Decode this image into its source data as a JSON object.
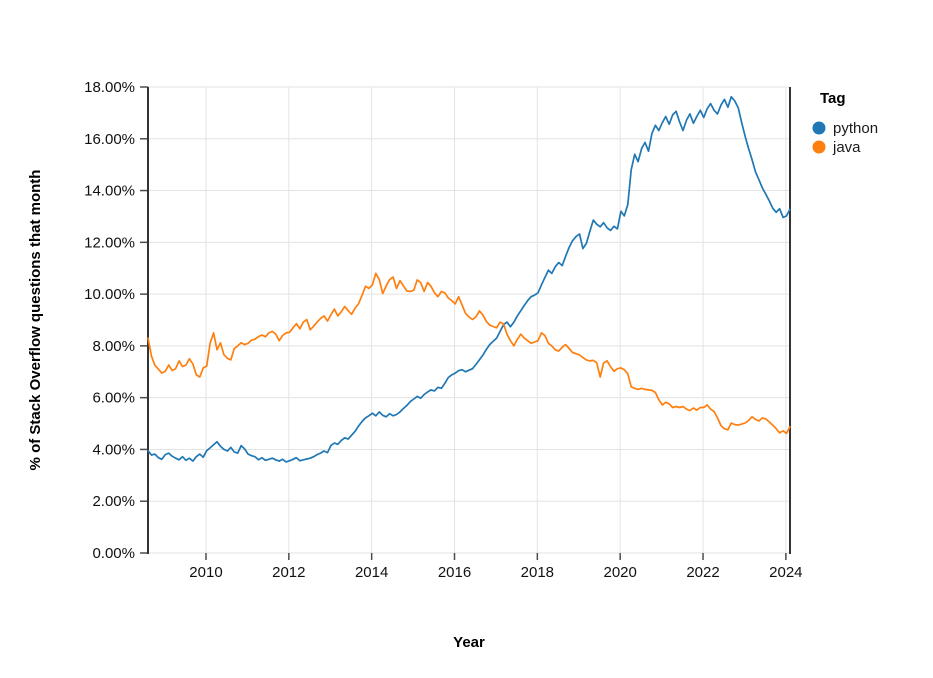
{
  "chart_data": {
    "type": "line",
    "title": "",
    "xlabel": "Year",
    "ylabel": "% of Stack Overflow questions that month",
    "grid": true,
    "x_domain": [
      2008.6,
      2024.1
    ],
    "y_domain": [
      0,
      18
    ],
    "x_ticks": {
      "values": [
        2010,
        2012,
        2014,
        2016,
        2018,
        2020,
        2022,
        2024
      ],
      "labels": [
        "2010",
        "2012",
        "2014",
        "2016",
        "2018",
        "2020",
        "2022",
        "2024"
      ]
    },
    "y_ticks": {
      "values": [
        0,
        2,
        4,
        6,
        8,
        10,
        12,
        14,
        16,
        18
      ],
      "labels": [
        "0.00%",
        "2.00%",
        "4.00%",
        "6.00%",
        "8.00%",
        "10.00%",
        "12.00%",
        "14.00%",
        "16.00%",
        "18.00%"
      ]
    },
    "legend": {
      "title": "Tag",
      "position": "right",
      "items": [
        {
          "label": "python",
          "color": "#1f77b4"
        },
        {
          "label": "java",
          "color": "#ff7f0e"
        }
      ]
    },
    "series": [
      {
        "name": "python",
        "color": "#1f77b4",
        "x_start": 2008.6,
        "x_step": 0.0833333,
        "values": [
          3.95,
          3.78,
          3.82,
          3.68,
          3.62,
          3.8,
          3.86,
          3.74,
          3.66,
          3.6,
          3.72,
          3.58,
          3.66,
          3.55,
          3.72,
          3.82,
          3.7,
          3.95,
          4.06,
          4.18,
          4.3,
          4.12,
          4.0,
          3.94,
          4.08,
          3.9,
          3.86,
          4.15,
          4.02,
          3.82,
          3.76,
          3.72,
          3.6,
          3.68,
          3.58,
          3.62,
          3.66,
          3.6,
          3.55,
          3.62,
          3.52,
          3.56,
          3.62,
          3.68,
          3.56,
          3.6,
          3.63,
          3.66,
          3.72,
          3.8,
          3.86,
          3.94,
          3.88,
          4.15,
          4.25,
          4.2,
          4.35,
          4.45,
          4.4,
          4.55,
          4.7,
          4.9,
          5.08,
          5.22,
          5.3,
          5.4,
          5.3,
          5.45,
          5.32,
          5.26,
          5.38,
          5.3,
          5.35,
          5.45,
          5.58,
          5.7,
          5.85,
          5.95,
          6.05,
          5.98,
          6.12,
          6.22,
          6.3,
          6.26,
          6.4,
          6.36,
          6.55,
          6.78,
          6.88,
          6.95,
          7.04,
          7.08,
          7.0,
          7.06,
          7.12,
          7.28,
          7.46,
          7.64,
          7.86,
          8.05,
          8.18,
          8.3,
          8.56,
          8.82,
          8.92,
          8.74,
          8.92,
          9.15,
          9.36,
          9.56,
          9.75,
          9.9,
          9.96,
          10.05,
          10.36,
          10.64,
          10.92,
          10.8,
          11.06,
          11.22,
          11.1,
          11.46,
          11.8,
          12.06,
          12.22,
          12.32,
          11.76,
          11.96,
          12.42,
          12.86,
          12.7,
          12.6,
          12.76,
          12.56,
          12.46,
          12.62,
          12.52,
          13.2,
          13.02,
          13.46,
          14.8,
          15.4,
          15.12,
          15.62,
          15.86,
          15.52,
          16.2,
          16.52,
          16.32,
          16.62,
          16.86,
          16.56,
          16.92,
          17.06,
          16.66,
          16.32,
          16.72,
          16.96,
          16.6,
          16.86,
          17.1,
          16.82,
          17.16,
          17.36,
          17.1,
          16.96,
          17.3,
          17.52,
          17.22,
          17.62,
          17.46,
          17.2,
          16.62,
          16.1,
          15.62,
          15.2,
          14.72,
          14.42,
          14.1,
          13.86,
          13.6,
          13.32,
          13.16,
          13.3,
          12.96,
          13.02,
          13.28
        ]
      },
      {
        "name": "java",
        "color": "#ff7f0e",
        "x_start": 2008.6,
        "x_step": 0.0833333,
        "values": [
          8.3,
          7.6,
          7.25,
          7.1,
          6.95,
          7.02,
          7.26,
          7.05,
          7.12,
          7.42,
          7.2,
          7.26,
          7.5,
          7.3,
          6.88,
          6.8,
          7.15,
          7.22,
          8.1,
          8.5,
          7.85,
          8.12,
          7.66,
          7.52,
          7.46,
          7.9,
          8.0,
          8.12,
          8.05,
          8.1,
          8.22,
          8.26,
          8.36,
          8.42,
          8.35,
          8.5,
          8.56,
          8.46,
          8.2,
          8.4,
          8.5,
          8.52,
          8.7,
          8.86,
          8.66,
          8.92,
          9.02,
          8.62,
          8.76,
          8.92,
          9.06,
          9.16,
          8.96,
          9.2,
          9.42,
          9.16,
          9.32,
          9.52,
          9.36,
          9.22,
          9.46,
          9.62,
          9.95,
          10.3,
          10.22,
          10.36,
          10.8,
          10.56,
          10.02,
          10.32,
          10.56,
          10.66,
          10.22,
          10.52,
          10.32,
          10.12,
          10.1,
          10.15,
          10.55,
          10.45,
          10.1,
          10.45,
          10.3,
          10.05,
          9.9,
          10.1,
          10.05,
          9.85,
          9.75,
          9.62,
          9.9,
          9.58,
          9.26,
          9.12,
          9.02,
          9.12,
          9.35,
          9.2,
          8.95,
          8.8,
          8.75,
          8.7,
          8.92,
          8.85,
          8.45,
          8.2,
          8.0,
          8.25,
          8.45,
          8.3,
          8.2,
          8.1,
          8.15,
          8.2,
          8.5,
          8.4,
          8.1,
          8.0,
          7.85,
          7.8,
          7.95,
          8.05,
          7.9,
          7.75,
          7.7,
          7.65,
          7.55,
          7.46,
          7.42,
          7.44,
          7.35,
          6.8,
          7.34,
          7.42,
          7.2,
          7.02,
          7.12,
          7.15,
          7.08,
          6.92,
          6.42,
          6.36,
          6.32,
          6.36,
          6.32,
          6.3,
          6.28,
          6.2,
          5.92,
          5.72,
          5.82,
          5.76,
          5.62,
          5.66,
          5.62,
          5.66,
          5.56,
          5.5,
          5.6,
          5.52,
          5.62,
          5.62,
          5.72,
          5.56,
          5.46,
          5.22,
          4.92,
          4.8,
          4.76,
          5.02,
          4.96,
          4.94,
          4.98,
          5.02,
          5.12,
          5.26,
          5.16,
          5.1,
          5.22,
          5.18,
          5.06,
          4.94,
          4.8,
          4.64,
          4.72,
          4.62,
          4.88
        ]
      }
    ]
  },
  "colors": {
    "background": "#ffffff",
    "gridline": "#e3e3e3",
    "axis_domain": "#333333",
    "tick": "#4d4d4d",
    "text": "#111111"
  }
}
